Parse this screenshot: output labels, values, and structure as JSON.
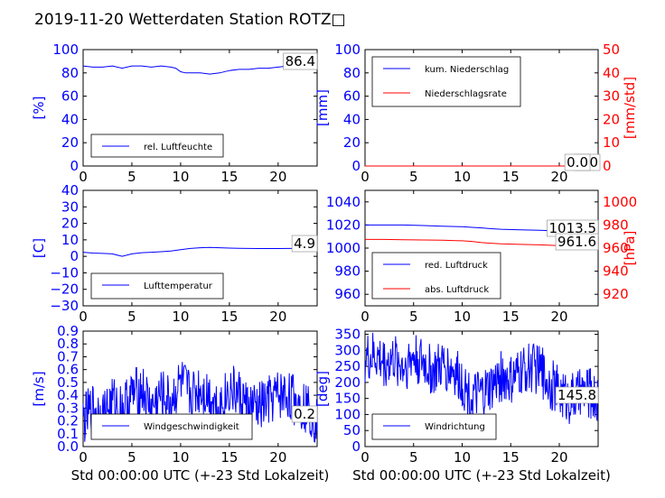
{
  "figure": {
    "title": "2019-11-20 Wetterdaten Station ROTZ□"
  },
  "chart_data": [
    {
      "id": "humidity",
      "type": "line",
      "x": [
        0,
        1,
        2,
        3,
        4,
        5,
        6,
        7,
        8,
        9,
        9.5,
        10,
        10.5,
        11,
        12,
        13,
        14,
        15,
        16,
        17,
        18,
        19,
        20,
        21,
        22,
        23,
        24
      ],
      "xlim": [
        0,
        24
      ],
      "xticks": [
        "0",
        "5",
        "10",
        "15",
        "20"
      ],
      "ylabel": "[%]",
      "ylim": [
        0,
        100
      ],
      "yticks": [
        "0",
        "20",
        "40",
        "60",
        "80",
        "100"
      ],
      "series": [
        {
          "name": "rel. Luftfeuchte",
          "color": "#0000ff",
          "values": [
            86,
            85,
            85,
            86,
            84,
            86,
            86,
            85,
            86,
            85,
            84,
            81,
            80,
            80,
            80,
            79,
            80,
            82,
            83,
            83,
            84,
            84,
            85,
            86,
            86,
            86,
            86.4
          ]
        }
      ],
      "legend": "lower-left",
      "annotations": [
        "86.4"
      ]
    },
    {
      "id": "precipitation",
      "type": "line",
      "x": [
        0,
        24
      ],
      "xlim": [
        0,
        24
      ],
      "xticks": [
        "0",
        "5",
        "10",
        "15",
        "20"
      ],
      "ylabel": "[mm]",
      "ylim": [
        0,
        100
      ],
      "yticks": [
        "0",
        "20",
        "40",
        "60",
        "80",
        "100"
      ],
      "y2label": "[mm/std]",
      "y2lim": [
        0,
        50
      ],
      "y2ticks": [
        "0",
        "10",
        "20",
        "30",
        "40",
        "50"
      ],
      "series": [
        {
          "name": "kum. Niederschlag",
          "color": "#0000ff",
          "values": [
            0,
            0
          ]
        },
        {
          "name": "Niederschlagsrate",
          "color": "#ff0000",
          "axis": "right",
          "values": [
            0,
            0
          ]
        }
      ],
      "legend": "upper-left",
      "annotations": [
        "0.0",
        "0.0"
      ]
    },
    {
      "id": "temperature",
      "type": "line",
      "x": [
        0,
        1,
        2,
        3,
        4,
        5,
        6,
        7,
        8,
        9,
        10,
        11,
        12,
        13,
        14,
        15,
        16,
        17,
        18,
        19,
        20,
        21,
        22,
        23,
        24
      ],
      "xlim": [
        0,
        24
      ],
      "xticks": [
        "0",
        "5",
        "10",
        "15",
        "20"
      ],
      "ylabel": "[C]",
      "ylim": [
        -30,
        40
      ],
      "yticks": [
        "−30",
        "−20",
        "−10",
        "0",
        "10",
        "20",
        "30",
        "40"
      ],
      "series": [
        {
          "name": "Lufttemperatur",
          "color": "#0000ff",
          "values": [
            2.5,
            2,
            1.8,
            1.5,
            0,
            1.5,
            2.2,
            2.5,
            2.8,
            3.2,
            4,
            4.8,
            5.2,
            5.4,
            5.2,
            5,
            4.9,
            4.8,
            4.7,
            4.7,
            4.7,
            4.8,
            4.8,
            4.9,
            4.9
          ]
        }
      ],
      "legend": "lower-left",
      "annotations": [
        "4.9"
      ]
    },
    {
      "id": "pressure",
      "type": "line",
      "x": [
        0,
        2,
        4,
        6,
        8,
        10,
        11,
        12,
        13,
        14,
        16,
        18,
        20,
        22,
        24
      ],
      "xlim": [
        0,
        24
      ],
      "xticks": [
        "0",
        "5",
        "10",
        "15",
        "20"
      ],
      "ylim": [
        950,
        1050
      ],
      "yticks": [
        "960",
        "980",
        "1000",
        "1020",
        "1040"
      ],
      "y2label": "[hPa]",
      "y2lim": [
        910,
        1010
      ],
      "y2ticks": [
        "920",
        "940",
        "960",
        "980",
        "1000"
      ],
      "series": [
        {
          "name": "red. Luftdruck",
          "color": "#0000ff",
          "values": [
            1020,
            1020,
            1020,
            1019.5,
            1019,
            1018.5,
            1018,
            1017.5,
            1016.8,
            1016.3,
            1015.8,
            1015.4,
            1014.8,
            1014,
            1013.5
          ]
        },
        {
          "name": "abs. Luftdruck",
          "color": "#ff0000",
          "axis": "right",
          "values": [
            967.5,
            967.5,
            967.2,
            967,
            966.8,
            966.3,
            965.8,
            964.8,
            964.2,
            963.7,
            963.2,
            962.8,
            962.2,
            961.8,
            961.6
          ]
        }
      ],
      "legend": "lower-left",
      "annotations": [
        "1013.5",
        "961.6"
      ]
    },
    {
      "id": "wind-speed",
      "type": "line",
      "xlabel": "Std 00:00:00 UTC (+-23 Std Lokalzeit)",
      "xlim": [
        0,
        24
      ],
      "xticks": [
        "0",
        "5",
        "10",
        "15",
        "20"
      ],
      "ylabel": "[m/s]",
      "ylim": [
        0,
        0.9
      ],
      "yticks": [
        "0.0",
        "0.1",
        "0.2",
        "0.3",
        "0.4",
        "0.5",
        "0.6",
        "0.7",
        "0.8",
        "0.9"
      ],
      "series": [
        {
          "name": "Windgeschwindigkeit",
          "color": "#0000ff",
          "noisy": true,
          "x": [
            0,
            1,
            2,
            3,
            4,
            5,
            6,
            7,
            8,
            9,
            10,
            11,
            12,
            13,
            14,
            15,
            16,
            17,
            18,
            19,
            20,
            21,
            22,
            23,
            24
          ],
          "values": [
            0.2,
            0.3,
            0.25,
            0.35,
            0.3,
            0.4,
            0.45,
            0.3,
            0.4,
            0.35,
            0.5,
            0.4,
            0.45,
            0.4,
            0.3,
            0.45,
            0.4,
            0.3,
            0.3,
            0.35,
            0.4,
            0.4,
            0.35,
            0.3,
            0.2
          ]
        }
      ],
      "legend": "lower-left",
      "annotations": [
        "0.2"
      ]
    },
    {
      "id": "wind-direction",
      "type": "line",
      "xlabel": "Std 00:00:00 UTC (+-23 Std Lokalzeit)",
      "xlim": [
        0,
        24
      ],
      "xticks": [
        "0",
        "5",
        "10",
        "15",
        "20"
      ],
      "ylabel": "[deg]",
      "ylim": [
        0,
        360
      ],
      "yticks": [
        "0",
        "50",
        "100",
        "150",
        "200",
        "250",
        "300",
        "350"
      ],
      "series": [
        {
          "name": "Windrichtung",
          "color": "#0000ff",
          "noisy": true,
          "x": [
            0,
            1,
            2,
            3,
            4,
            5,
            6,
            7,
            8,
            9,
            10,
            11,
            12,
            13,
            14,
            15,
            16,
            17,
            18,
            19,
            20,
            21,
            22,
            23,
            24
          ],
          "values": [
            270,
            280,
            260,
            270,
            250,
            280,
            260,
            230,
            250,
            240,
            200,
            150,
            160,
            180,
            220,
            200,
            230,
            250,
            240,
            200,
            170,
            150,
            160,
            170,
            145.8
          ]
        }
      ],
      "legend": "lower-left",
      "annotations": [
        "145.8"
      ]
    }
  ]
}
